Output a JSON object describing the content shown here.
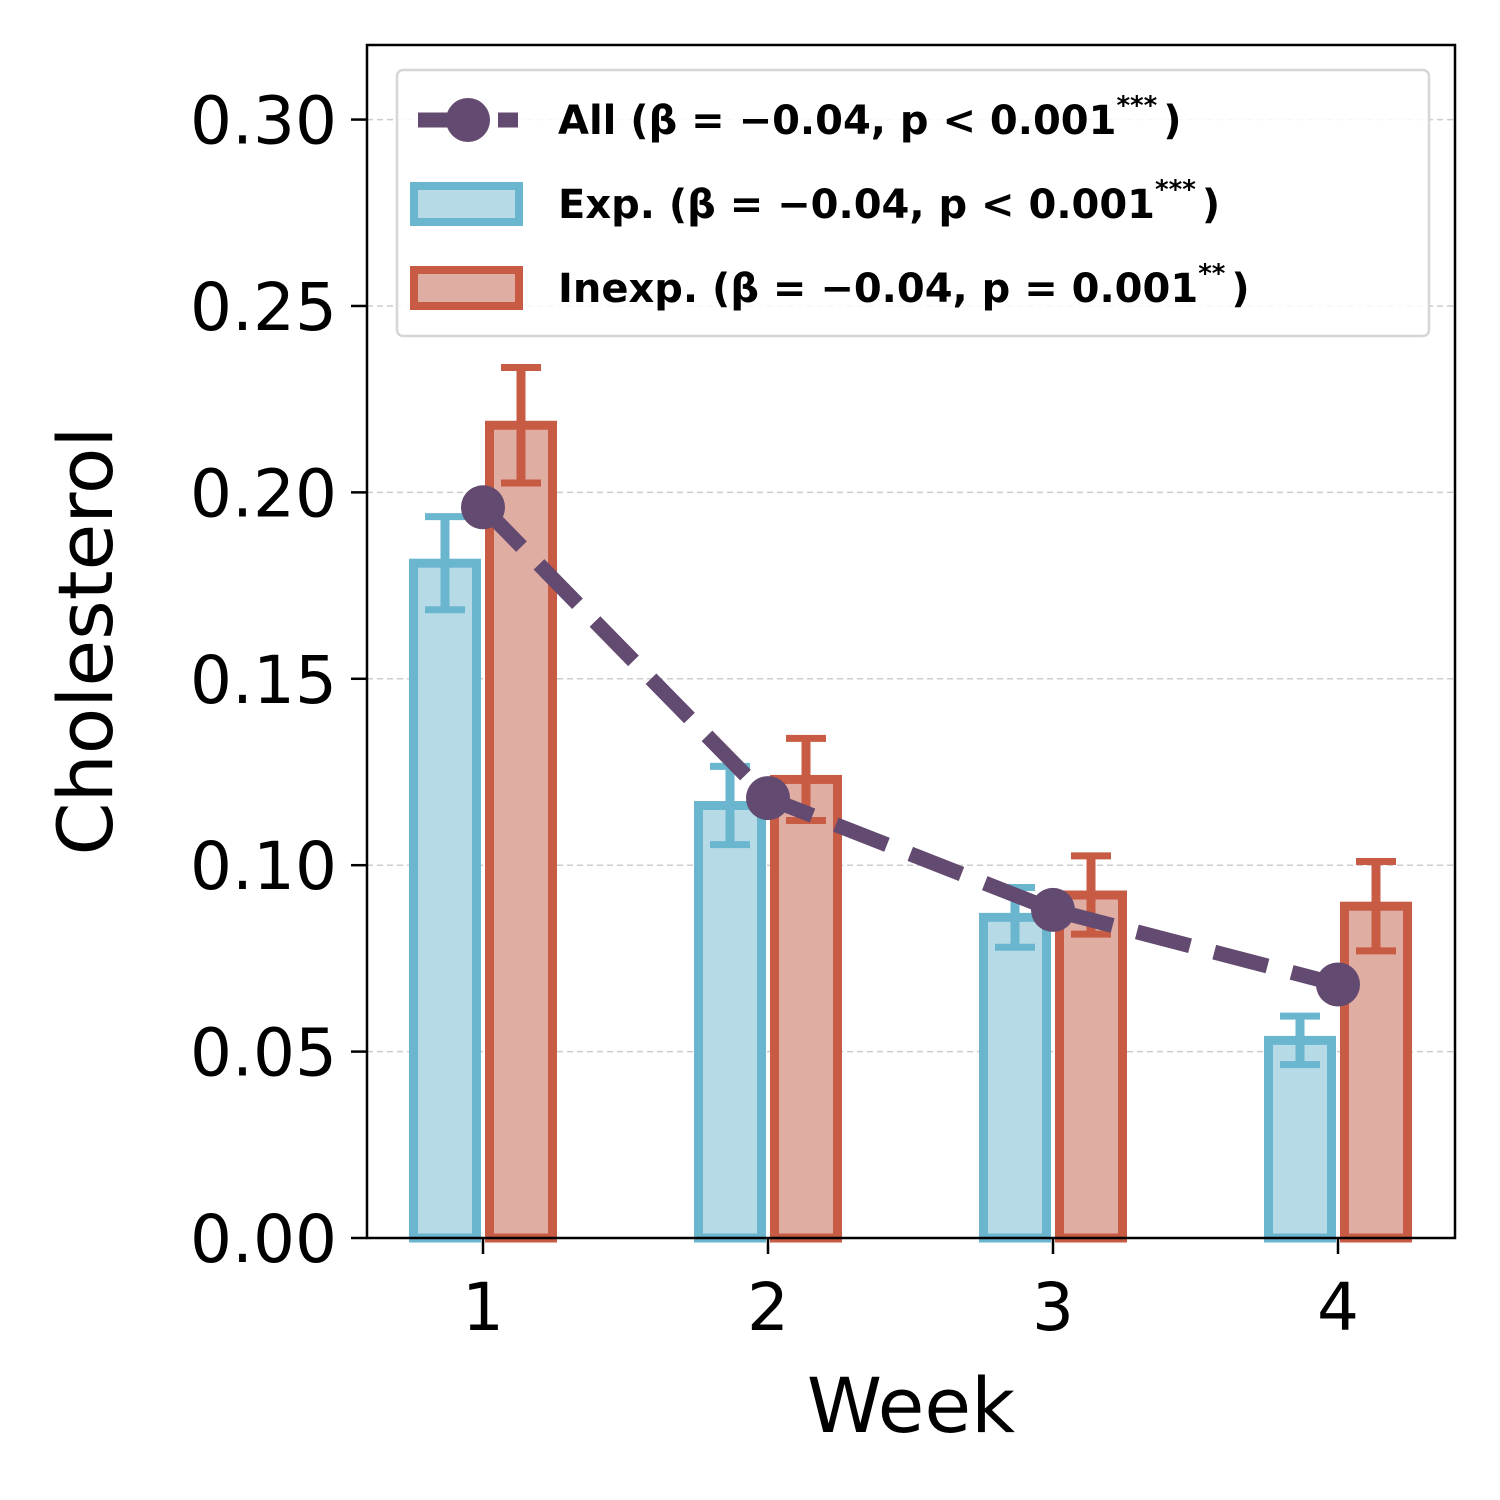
{
  "chart_data": {
    "type": "bar",
    "xlabel": "Week",
    "ylabel": "Cholesterol",
    "categories": [
      "1",
      "2",
      "3",
      "4"
    ],
    "ylim": [
      0,
      0.32
    ],
    "yticks": [
      "0.00",
      "0.05",
      "0.10",
      "0.15",
      "0.20",
      "0.25",
      "0.30"
    ],
    "grid": "horizontal-dashed",
    "legend_position": "top",
    "series": [
      {
        "name": "Exp.",
        "kind": "bar",
        "legend_label": "Exp. (β = −0.04, p < 0.001",
        "legend_sup": "***",
        "legend_close": ")",
        "values": [
          0.181,
          0.116,
          0.086,
          0.053
        ],
        "errors": [
          0.0125,
          0.0105,
          0.008,
          0.0065
        ],
        "edge_color": "#6bb6cf",
        "fill_color": "#b7dbe6"
      },
      {
        "name": "Inexp.",
        "kind": "bar",
        "legend_label": "Inexp. (β = −0.04, p = 0.001",
        "legend_sup": "**",
        "legend_close": ")",
        "values": [
          0.218,
          0.123,
          0.092,
          0.089
        ],
        "errors": [
          0.0155,
          0.011,
          0.0105,
          0.012
        ],
        "edge_color": "#c75b44",
        "fill_color": "#e0ada3"
      },
      {
        "name": "All",
        "kind": "line",
        "legend_label": "All (β = −0.04, p < 0.001",
        "legend_sup": "***",
        "legend_close": ")",
        "values": [
          0.196,
          0.118,
          0.088,
          0.068
        ],
        "color": "#634a70"
      }
    ]
  }
}
